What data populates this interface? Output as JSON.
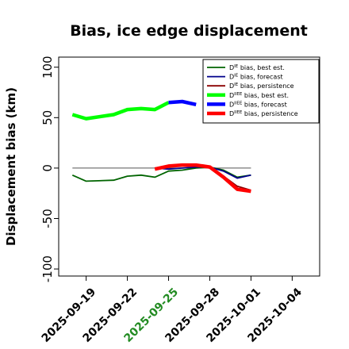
{
  "chart_data": {
    "type": "line",
    "title": "Bias, ice edge displacement",
    "xlabel": "",
    "ylabel": "Displacement bias (km)",
    "ylim": [
      -107,
      110
    ],
    "xlim": [
      "2025-09-17",
      "2025-10-06"
    ],
    "yticks": [
      -100,
      -50,
      0,
      50,
      100
    ],
    "yticklabels": [
      "-100",
      "-50",
      "0",
      "50",
      "100"
    ],
    "xticks": [
      "2025-09-19",
      "2025-09-22",
      "2025-09-25",
      "2025-09-28",
      "2025-10-01",
      "2025-10-04"
    ],
    "xticklabels": [
      "2025-09-19",
      "2025-09-22",
      "2025-09-25",
      "2025-09-28",
      "2025-10-01",
      "2025-10-04"
    ],
    "xtick_colors": [
      "#000000",
      "#000000",
      "#228b22",
      "#000000",
      "#000000",
      "#000000"
    ],
    "zero_line": true,
    "legend_position": "top-right",
    "series": [
      {
        "name": "D^IE bias, best est.",
        "color": "#006400",
        "width": 1.8,
        "x": [
          "2025-09-18",
          "2025-09-19",
          "2025-09-21",
          "2025-09-22",
          "2025-09-23",
          "2025-09-24",
          "2025-09-25",
          "2025-09-26",
          "2025-09-27",
          "2025-09-28",
          "2025-09-29",
          "2025-09-30",
          "2025-10-01"
        ],
        "values": [
          -7,
          -13,
          -12,
          -8,
          -7,
          -9,
          -3,
          -2,
          0,
          1,
          -2,
          -9,
          -7
        ]
      },
      {
        "name": "D^IE bias, forecast",
        "color": "#00008b",
        "width": 1.8,
        "x": [
          "2025-09-24",
          "2025-09-25",
          "2025-09-26",
          "2025-09-27",
          "2025-09-28",
          "2025-09-29",
          "2025-09-30",
          "2025-10-01"
        ],
        "values": [
          0,
          -1,
          0,
          1,
          1,
          -3,
          -10,
          -7
        ]
      },
      {
        "name": "D^IE bias, persistence",
        "color": "#8b0000",
        "width": 1.8,
        "x": [
          "2025-09-24",
          "2025-09-25",
          "2025-09-26",
          "2025-09-27",
          "2025-09-28",
          "2025-09-29",
          "2025-09-30",
          "2025-10-01"
        ],
        "values": [
          0,
          2,
          3,
          3,
          1,
          -8,
          -18,
          -22
        ]
      },
      {
        "name": "D^IIEE bias, best est.",
        "color": "#00ff00",
        "width": 4.5,
        "x": [
          "2025-09-18",
          "2025-09-19",
          "2025-09-21",
          "2025-09-22",
          "2025-09-23",
          "2025-09-24",
          "2025-09-25"
        ],
        "values": [
          53,
          49,
          53,
          58,
          59,
          58,
          65
        ]
      },
      {
        "name": "D^IIEE bias, forecast",
        "color": "#0000ff",
        "width": 4.5,
        "x": [
          "2025-09-25",
          "2025-09-26",
          "2025-09-27"
        ],
        "values": [
          65,
          66,
          63
        ]
      },
      {
        "name": "D^IIEE bias, persistence",
        "color": "#ff0000",
        "width": 4.5,
        "x": [
          "2025-09-24",
          "2025-09-25",
          "2025-09-26",
          "2025-09-27",
          "2025-09-28",
          "2025-09-29",
          "2025-09-30",
          "2025-10-01"
        ],
        "values": [
          -1,
          2,
          3,
          3,
          1,
          -9,
          -21,
          -23
        ]
      }
    ],
    "legend": [
      {
        "label": "D^IE bias, best est.",
        "base": "D",
        "sup": "IE",
        "rest": " bias, best est."
      },
      {
        "label": "D^IE bias, forecast",
        "base": "D",
        "sup": "IE",
        "rest": " bias, forecast"
      },
      {
        "label": "D^IE bias, persistence",
        "base": "D",
        "sup": "IE",
        "rest": " bias, persistence"
      },
      {
        "label": "D^IIEE bias, best est.",
        "base": "D",
        "sup": "IIEE",
        "rest": " bias, best est."
      },
      {
        "label": "D^IIEE bias, forecast",
        "base": "D",
        "sup": "IIEE",
        "rest": " bias, forecast"
      },
      {
        "label": "D^IIEE bias, persistence",
        "base": "D",
        "sup": "IIEE",
        "rest": " bias, persistence"
      }
    ]
  }
}
